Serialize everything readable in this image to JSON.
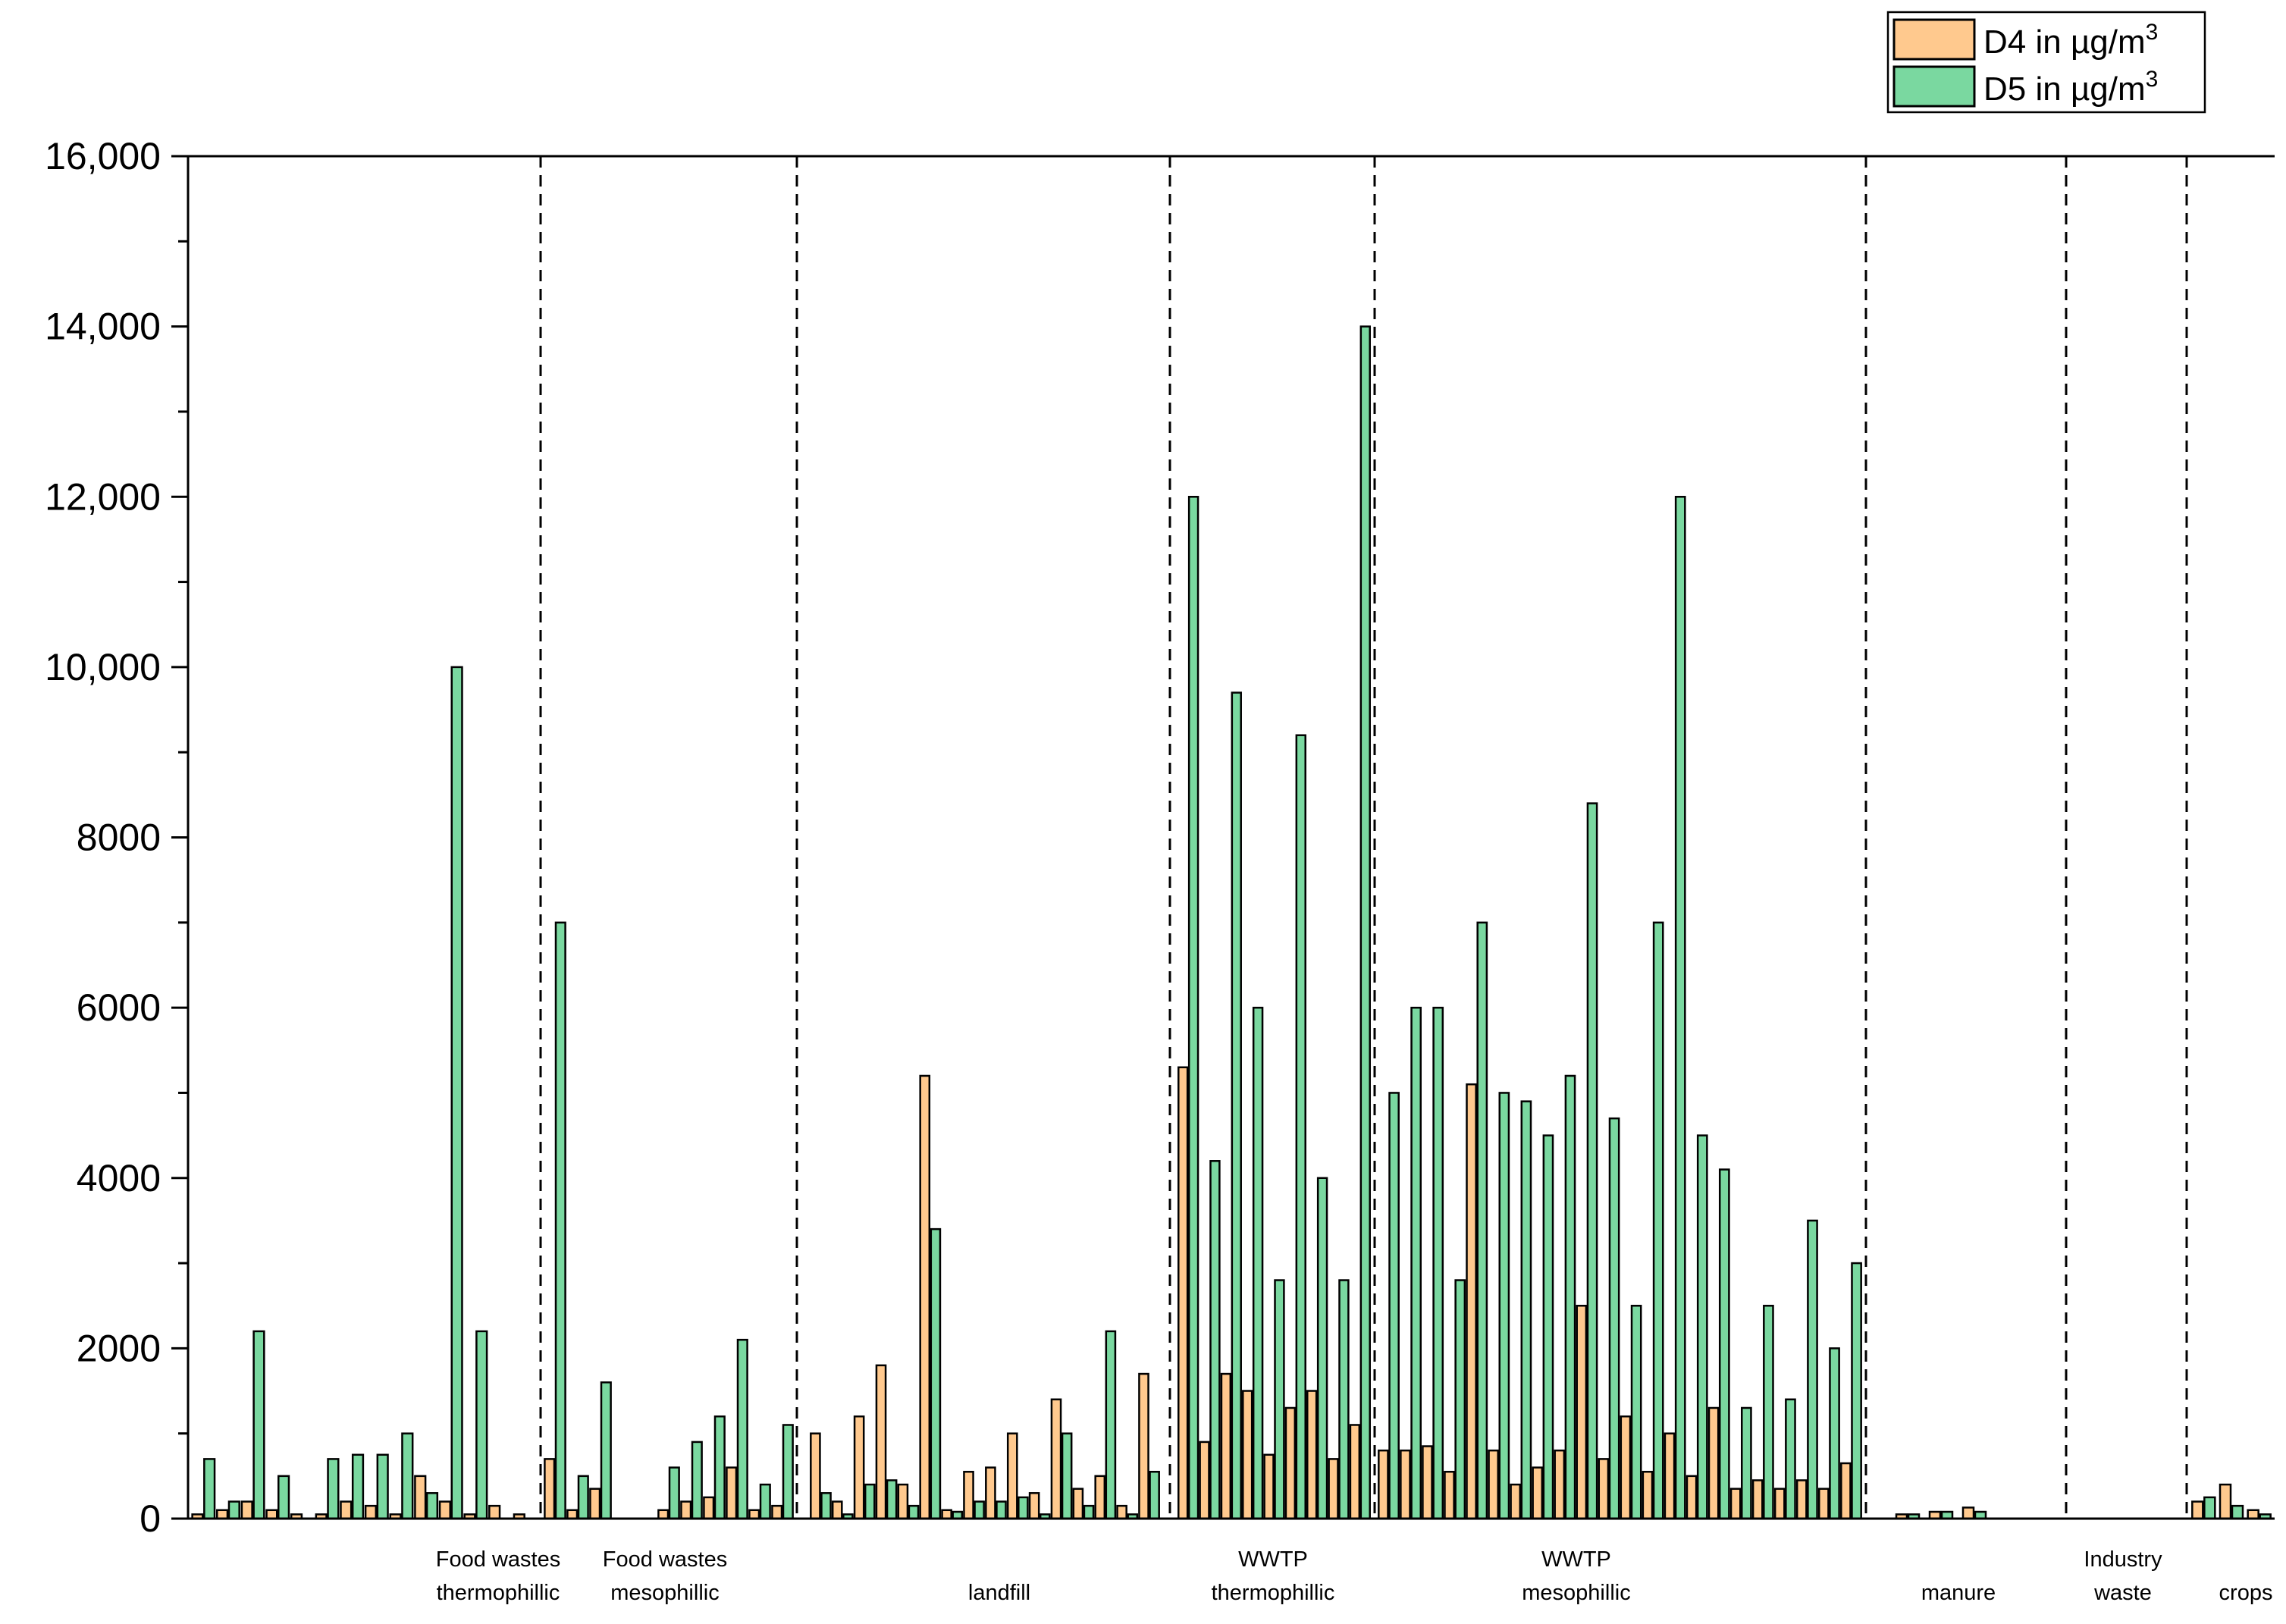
{
  "chart_data": {
    "type": "bar",
    "xlabel": "",
    "ylabel": "",
    "ylim": [
      0,
      16000
    ],
    "y_ticks": [
      {
        "value": 0,
        "label": "0"
      },
      {
        "value": 2000,
        "label": "2000"
      },
      {
        "value": 4000,
        "label": "4000"
      },
      {
        "value": 6000,
        "label": "6000"
      },
      {
        "value": 8000,
        "label": "8000"
      },
      {
        "value": 10000,
        "label": "10,000"
      },
      {
        "value": 12000,
        "label": "12,000"
      },
      {
        "value": 14000,
        "label": "14,000"
      },
      {
        "value": 16000,
        "label": "16,000"
      }
    ],
    "legend": {
      "position": "top-right",
      "entries": [
        {
          "label": "D4 in µg/m",
          "sup": "3",
          "color": "#FFC98E"
        },
        {
          "label": "D5 in µg/m",
          "sup": "3",
          "color": "#7AD8A0"
        }
      ]
    },
    "groups": [
      {
        "lines": [
          "Food wastes",
          "thermophillic"
        ],
        "d4": [
          50,
          100,
          200,
          100,
          50,
          50,
          200,
          150,
          50,
          500,
          200,
          50,
          150,
          50
        ],
        "d5": [
          700,
          200,
          2200,
          500,
          0,
          700,
          750,
          750,
          1000,
          300,
          10000,
          2200,
          0,
          0
        ]
      },
      {
        "lines": [
          "Food wastes",
          "mesophillic"
        ],
        "d4": [
          700,
          100,
          350,
          0,
          0,
          100,
          200,
          250,
          600,
          100,
          150
        ],
        "d5": [
          7000,
          500,
          1600,
          0,
          0,
          600,
          900,
          1200,
          2100,
          400,
          1100
        ]
      },
      {
        "lines": [
          "landfill"
        ],
        "d4": [
          1000,
          200,
          1200,
          1800,
          400,
          5200,
          100,
          550,
          600,
          1000,
          300,
          1400,
          350,
          500,
          150,
          1700
        ],
        "d5": [
          300,
          50,
          400,
          450,
          150,
          3400,
          80,
          200,
          200,
          250,
          50,
          1000,
          150,
          2200,
          50,
          550
        ]
      },
      {
        "lines": [
          "WWTP",
          "thermophillic"
        ],
        "d4": [
          5300,
          900,
          1700,
          1500,
          750,
          1300,
          1500,
          700,
          1100
        ],
        "d5": [
          12000,
          4200,
          9700,
          6000,
          2800,
          9200,
          4000,
          2800,
          14000
        ]
      },
      {
        "lines": [
          "WWTP",
          "mesophillic"
        ],
        "d4": [
          800,
          800,
          850,
          550,
          5100,
          800,
          400,
          600,
          800,
          2500,
          700,
          1200,
          550,
          1000,
          500,
          1300,
          350,
          450,
          350,
          450,
          350,
          650
        ],
        "d5": [
          5000,
          6000,
          6000,
          2800,
          7000,
          5000,
          4900,
          4500,
          5200,
          8400,
          4700,
          2500,
          7000,
          12000,
          4500,
          4100,
          1300,
          2500,
          1400,
          3500,
          2000,
          3000
        ]
      },
      {
        "lines": [
          "manure"
        ],
        "d4": [
          50,
          80,
          130
        ],
        "d5": [
          50,
          80,
          80
        ]
      },
      {
        "lines": [
          "Industry",
          "waste"
        ],
        "d4": [],
        "d5": []
      },
      {
        "lines": [
          "crops"
        ],
        "d4": [
          200,
          400,
          100
        ],
        "d5": [
          250,
          150,
          50
        ]
      }
    ]
  }
}
